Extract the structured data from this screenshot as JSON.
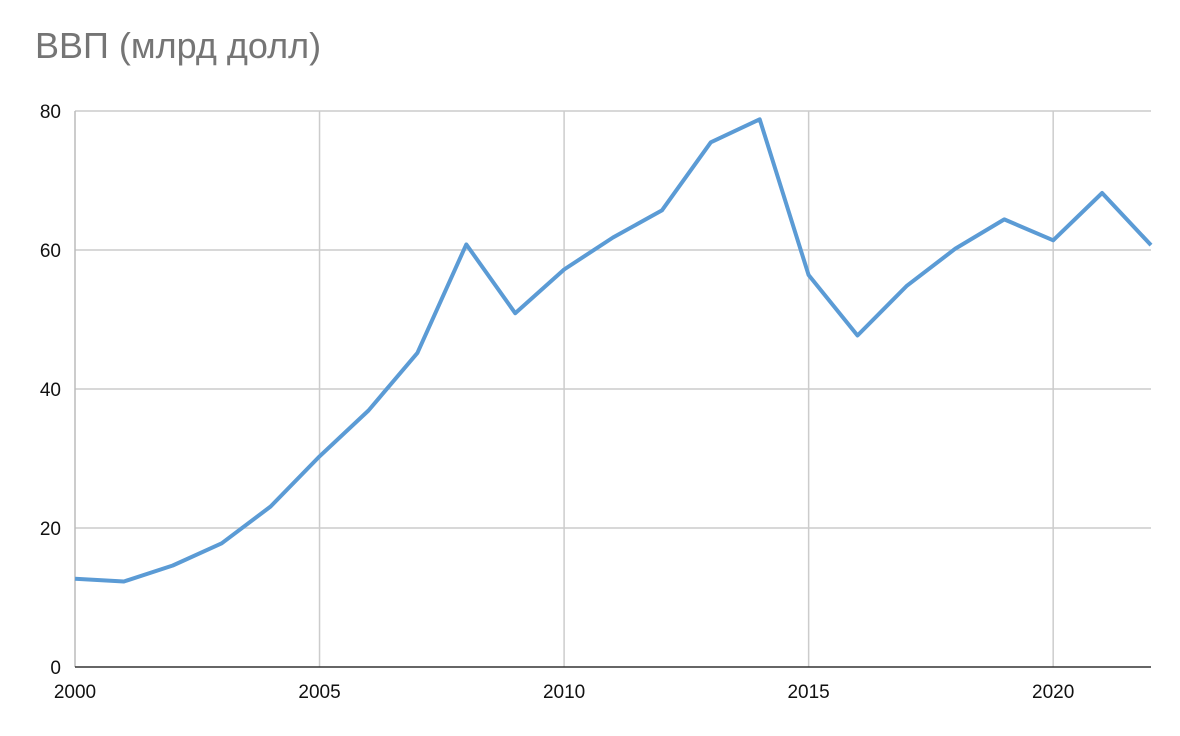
{
  "chart_data": {
    "type": "line",
    "title": "ВВП (млрд долл)",
    "xlabel": "",
    "ylabel": "",
    "xlim": [
      2000,
      2022
    ],
    "ylim": [
      0,
      80
    ],
    "x_ticks": [
      "2000",
      "2005",
      "2010",
      "2015",
      "2020"
    ],
    "y_ticks": [
      "0",
      "20",
      "40",
      "60",
      "80"
    ],
    "grid": true,
    "legend": "none",
    "series": [
      {
        "color": "#5b9bd5",
        "x": [
          2000,
          2001,
          2002,
          2003,
          2004,
          2005,
          2006,
          2007,
          2008,
          2009,
          2010,
          2011,
          2012,
          2013,
          2014,
          2015,
          2016,
          2017,
          2018,
          2019,
          2020,
          2021,
          2022
        ],
        "values": [
          12.7,
          12.3,
          14.6,
          17.8,
          23.1,
          30.3,
          36.9,
          45.2,
          60.8,
          50.9,
          57.2,
          61.8,
          65.7,
          75.5,
          78.8,
          56.4,
          47.7,
          54.8,
          60.2,
          64.4,
          61.4,
          68.2,
          60.7
        ]
      }
    ]
  }
}
